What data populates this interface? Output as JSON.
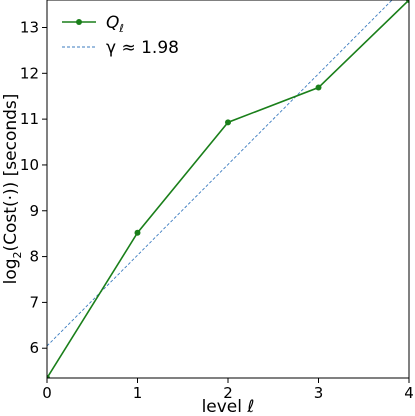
{
  "chart_data": {
    "type": "line",
    "title": "",
    "xlabel": "level ℓ",
    "ylabel_main": "log",
    "ylabel_sub": "2",
    "ylabel_rest": "(Cost(·)) [seconds]",
    "xlim": [
      0,
      4
    ],
    "ylim": [
      5.35,
      13.6
    ],
    "xticks": [
      "0",
      "1",
      "2",
      "3",
      "4"
    ],
    "yticks": [
      "6",
      "7",
      "8",
      "9",
      "10",
      "11",
      "12",
      "13"
    ],
    "grid": false,
    "legend_position": "top-left",
    "series": [
      {
        "name": "Q",
        "name_sub": "ℓ",
        "style": "solid-with-markers",
        "color": "#1a7f1a",
        "x": [
          0,
          1,
          2,
          3,
          4
        ],
        "y": [
          5.35,
          8.52,
          10.93,
          11.69,
          13.6
        ]
      },
      {
        "name": "γ ≈ 1.98",
        "style": "dashed",
        "color": "#3b7bbf",
        "x": [
          0,
          4
        ],
        "y": [
          6.05,
          13.97
        ]
      }
    ]
  }
}
